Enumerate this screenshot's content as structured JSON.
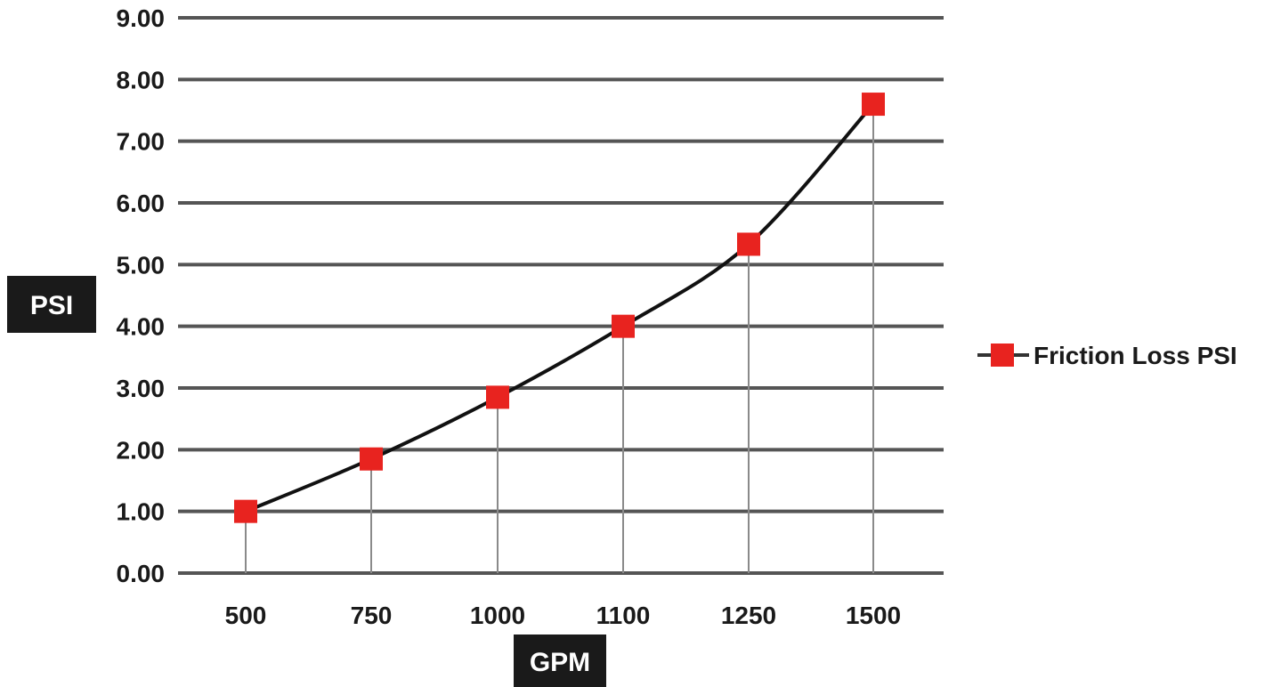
{
  "chart_data": {
    "type": "line",
    "categories": [
      "500",
      "750",
      "1000",
      "1100",
      "1250",
      "1500"
    ],
    "series": [
      {
        "name": "Friction Loss PSI",
        "values": [
          1.0,
          1.85,
          2.85,
          4.0,
          5.33,
          7.6
        ]
      }
    ],
    "xlabel": "GPM",
    "ylabel": "PSI",
    "ylim": [
      0,
      9
    ],
    "y_ticks": [
      "0.00",
      "1.00",
      "2.00",
      "3.00",
      "4.00",
      "5.00",
      "6.00",
      "7.00",
      "8.00",
      "9.00"
    ],
    "grid": "horizontal",
    "drop_lines": true,
    "smooth": true,
    "legend_position": "right",
    "colors": {
      "line": "#111111",
      "marker": "#e8231f",
      "grid": "#555555",
      "drop_line": "#8a8a8a",
      "axis_title_bg": "#1a1a1a",
      "axis_title_fg": "#ffffff"
    }
  }
}
